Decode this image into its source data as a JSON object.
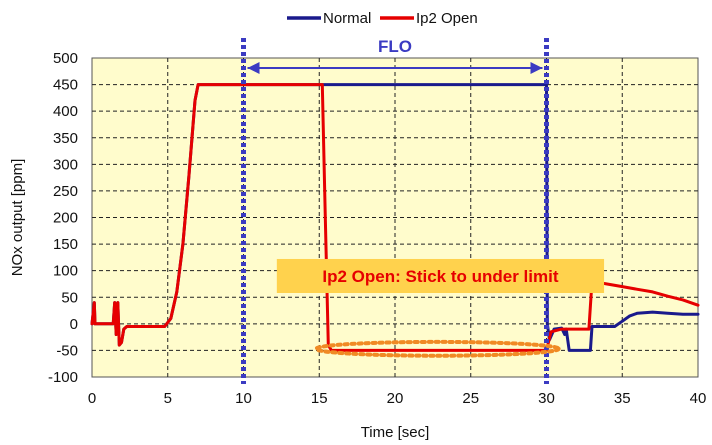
{
  "chart_data": {
    "type": "line",
    "xlabel": "Time [sec]",
    "ylabel": "NOx output [ppm]",
    "xlim": [
      0,
      40
    ],
    "ylim": [
      -100,
      500
    ],
    "x_ticks": [
      0,
      5,
      10,
      15,
      20,
      25,
      30,
      35,
      40
    ],
    "y_ticks": [
      -100,
      -50,
      0,
      50,
      100,
      150,
      200,
      250,
      300,
      350,
      400,
      450,
      500
    ],
    "grid": true,
    "legend_position": "top",
    "plot_background": "#fffccc",
    "series": [
      {
        "name": "Normal",
        "color": "#1a1a8c",
        "points": [
          [
            0,
            0
          ],
          [
            0.15,
            40
          ],
          [
            0.2,
            0
          ],
          [
            1.4,
            0
          ],
          [
            1.5,
            40
          ],
          [
            1.6,
            -20
          ],
          [
            1.7,
            40
          ],
          [
            1.8,
            -40
          ],
          [
            1.95,
            -35
          ],
          [
            2.1,
            -10
          ],
          [
            2.3,
            -5
          ],
          [
            3,
            -5
          ],
          [
            4,
            -5
          ],
          [
            4.8,
            -5
          ],
          [
            5.2,
            10
          ],
          [
            5.6,
            60
          ],
          [
            6,
            150
          ],
          [
            6.4,
            280
          ],
          [
            6.8,
            420
          ],
          [
            7,
            450
          ],
          [
            15,
            450
          ],
          [
            30,
            450
          ],
          [
            30.05,
            0
          ],
          [
            30.2,
            -30
          ],
          [
            30.5,
            -10
          ],
          [
            31,
            -8
          ],
          [
            31.2,
            -20
          ],
          [
            31.3,
            -10
          ],
          [
            31.5,
            -50
          ],
          [
            32.9,
            -50
          ],
          [
            33,
            -5
          ],
          [
            34,
            -5
          ],
          [
            34.5,
            -5
          ],
          [
            35,
            5
          ],
          [
            35.5,
            15
          ],
          [
            36,
            20
          ],
          [
            37,
            22
          ],
          [
            38,
            20
          ],
          [
            39,
            18
          ],
          [
            40,
            18
          ]
        ]
      },
      {
        "name": "Ip2 Open",
        "color": "#e60000",
        "points": [
          [
            0,
            0
          ],
          [
            0.15,
            40
          ],
          [
            0.2,
            0
          ],
          [
            1.4,
            0
          ],
          [
            1.5,
            40
          ],
          [
            1.6,
            -20
          ],
          [
            1.7,
            40
          ],
          [
            1.8,
            -40
          ],
          [
            1.95,
            -35
          ],
          [
            2.1,
            -10
          ],
          [
            2.3,
            -5
          ],
          [
            3,
            -5
          ],
          [
            4,
            -5
          ],
          [
            4.8,
            -5
          ],
          [
            5.2,
            10
          ],
          [
            5.6,
            60
          ],
          [
            6,
            150
          ],
          [
            6.4,
            280
          ],
          [
            6.8,
            420
          ],
          [
            7,
            450
          ],
          [
            15.2,
            450
          ],
          [
            15.4,
            200
          ],
          [
            15.6,
            -40
          ],
          [
            15.8,
            -50
          ],
          [
            30,
            -50
          ],
          [
            30.3,
            -15
          ],
          [
            31,
            -10
          ],
          [
            32,
            -10
          ],
          [
            32.8,
            -10
          ],
          [
            33,
            80
          ],
          [
            34,
            75
          ],
          [
            35,
            70
          ],
          [
            36,
            65
          ],
          [
            37,
            60
          ],
          [
            38,
            52
          ],
          [
            39,
            45
          ],
          [
            40,
            35
          ]
        ]
      }
    ],
    "annotations": {
      "flo": {
        "label": "FLO",
        "x_start": 10,
        "x_end": 30,
        "y": 450,
        "color": "#3b3bc2"
      },
      "callout": {
        "label": "Ip2 Open: Stick to under limit",
        "x_left": 12.2,
        "x_right": 33.8,
        "y_top": 122,
        "y_bottom": 58,
        "text_color": "#e60000",
        "background": "#ffd24d"
      },
      "ellipse": {
        "cx": 22.8,
        "cy": -47,
        "rx": 8,
        "ry": 13,
        "color": "#f08a24"
      }
    }
  }
}
